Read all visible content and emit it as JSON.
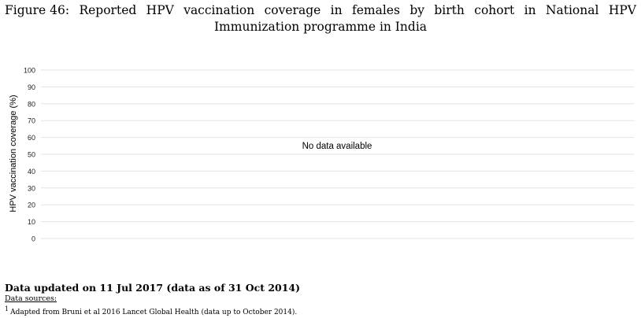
{
  "figure": {
    "label": "Figure 46:",
    "title_line1_words": [
      "Reported",
      "HPV",
      "vaccination",
      "coverage",
      "in",
      "females",
      "by",
      "birth",
      "cohort",
      "in",
      "National",
      "HPV"
    ],
    "title_line2": "Immunization programme in India"
  },
  "chart_data": {
    "type": "bar",
    "title": "",
    "ylabel": "HPV vaccination coverage (%)",
    "ylim": [
      0,
      100
    ],
    "yticks": [
      0,
      10,
      20,
      30,
      40,
      50,
      60,
      70,
      80,
      90,
      100
    ],
    "grid": true,
    "categories": [],
    "series": [],
    "no_data_message": "No data available"
  },
  "footer": {
    "updated": "Data updated on 11 Jul 2017 (data as of 31 Oct 2014)",
    "sources_heading": "Data sources:",
    "sources": [
      {
        "marker": "1",
        "text": "Adapted from Bruni et al 2016 Lancet Global Health (data up to October 2014)."
      }
    ]
  }
}
